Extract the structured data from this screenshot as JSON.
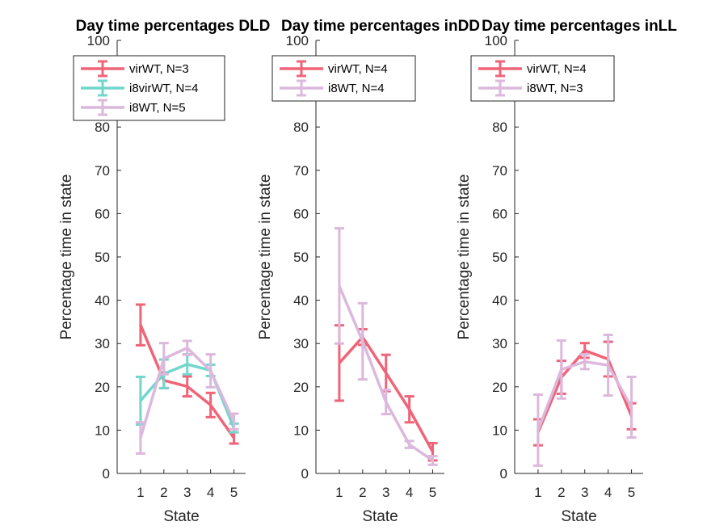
{
  "figure": {
    "background": "#ffffff"
  },
  "chart_data": [
    {
      "type": "line",
      "title": "Day time percentages DLD",
      "xlabel": "State",
      "ylabel": "Percentage time in state",
      "x": [
        1,
        2,
        3,
        4,
        5
      ],
      "xlim": [
        0,
        5.5
      ],
      "ylim": [
        0,
        100
      ],
      "xticks": [
        "1",
        "2",
        "3",
        "4",
        "5"
      ],
      "yticks": [
        "0",
        "10",
        "20",
        "30",
        "40",
        "50",
        "60",
        "70",
        "80",
        "90",
        "100"
      ],
      "legend_position": "top",
      "series": [
        {
          "name": "virWT, N=3",
          "color": "#f06478",
          "values": [
            34.3,
            21.5,
            20.1,
            15.8,
            8.2
          ],
          "err": [
            4.7,
            1.8,
            2.3,
            2.8,
            1.3
          ]
        },
        {
          "name": "i8virWT, N=4",
          "color": "#72d6cc",
          "values": [
            16.8,
            23.0,
            25.2,
            23.8,
            10.5
          ],
          "err": [
            5.5,
            3.3,
            2.3,
            1.3,
            1.0
          ]
        },
        {
          "name": "i8WT, N=5",
          "color": "#dcb8dc",
          "values": [
            8.2,
            26.5,
            29.0,
            23.7,
            12.0
          ],
          "err": [
            3.6,
            3.6,
            1.6,
            3.8,
            1.8
          ]
        }
      ]
    },
    {
      "type": "line",
      "title": "Day time percentages inDD",
      "xlabel": "State",
      "ylabel": "Percentage time in state",
      "x": [
        1,
        2,
        3,
        4,
        5
      ],
      "xlim": [
        0,
        5.5
      ],
      "ylim": [
        0,
        100
      ],
      "xticks": [
        "1",
        "2",
        "3",
        "4",
        "5"
      ],
      "yticks": [
        "0",
        "10",
        "20",
        "30",
        "40",
        "50",
        "60",
        "70",
        "80",
        "90",
        "100"
      ],
      "legend_position": "top",
      "series": [
        {
          "name": "virWT, N=4",
          "color": "#f06478",
          "values": [
            25.5,
            31.5,
            23.2,
            14.8,
            5.0
          ],
          "err": [
            8.7,
            1.8,
            4.2,
            3.0,
            2.0
          ]
        },
        {
          "name": "i8WT, N=4",
          "color": "#dcb8dc",
          "values": [
            43.3,
            30.5,
            16.5,
            6.7,
            3.0
          ],
          "err": [
            13.3,
            8.8,
            2.8,
            0.8,
            1.0
          ]
        }
      ]
    },
    {
      "type": "line",
      "title": "Day time percentages inLL",
      "xlabel": "State",
      "ylabel": "Percentage time in state",
      "x": [
        1,
        2,
        3,
        4,
        5
      ],
      "xlim": [
        0,
        5.5
      ],
      "ylim": [
        0,
        100
      ],
      "xticks": [
        "1",
        "2",
        "3",
        "4",
        "5"
      ],
      "yticks": [
        "0",
        "10",
        "20",
        "30",
        "40",
        "50",
        "60",
        "70",
        "80",
        "90",
        "100"
      ],
      "legend_position": "top",
      "series": [
        {
          "name": "virWT, N=4",
          "color": "#f06478",
          "values": [
            9.5,
            22.2,
            28.4,
            26.4,
            13.2
          ],
          "err": [
            3.0,
            3.8,
            1.7,
            4.0,
            3.0
          ]
        },
        {
          "name": "i8WT, N=3",
          "color": "#dcb8dc",
          "values": [
            10.0,
            24.0,
            25.8,
            25.0,
            15.3
          ],
          "err": [
            8.2,
            6.7,
            1.7,
            7.0,
            7.0
          ]
        }
      ]
    }
  ]
}
